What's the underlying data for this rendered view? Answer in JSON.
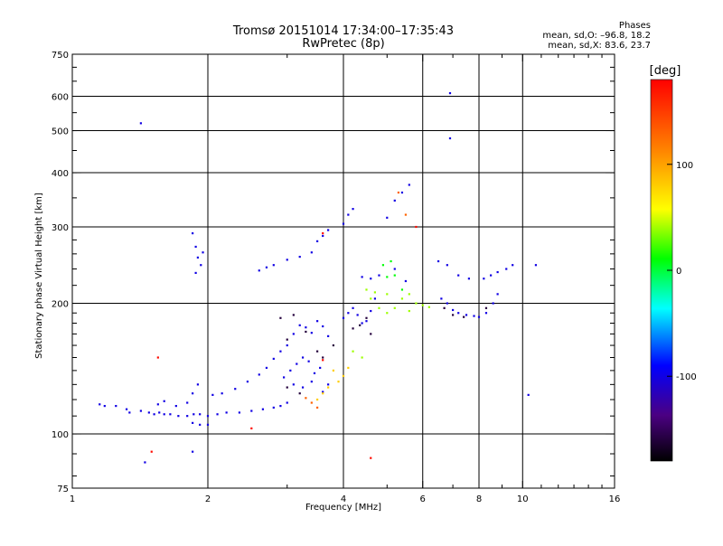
{
  "header": {
    "title_line1": "Tromsø 20151014 17:34:00–17:35:43",
    "title_line2": "RwPretec (8p)",
    "stats_heading": "Phases",
    "stats_o": "mean, sd,O: –96.8, 18.2",
    "stats_x": "mean, sd,X:  83.6, 23.7"
  },
  "chart_data": {
    "type": "scatter",
    "title": "Tromsø 20151014 17:34:00–17:35:43",
    "subtitle": "RwPretec (8p)",
    "xlabel": "Frequency [MHz]",
    "ylabel": "Stationary phase Virtual Height [km]",
    "x_scale": "log",
    "y_scale": "log",
    "xlim": [
      1,
      16
    ],
    "ylim": [
      75,
      750
    ],
    "x_major_ticks": [
      1,
      2,
      4,
      6,
      8,
      10,
      16
    ],
    "y_major_ticks": [
      75,
      100,
      200,
      300,
      400,
      500,
      600,
      750
    ],
    "y_gridlines": [
      100,
      200,
      300,
      400,
      500,
      600
    ],
    "x_gridlines": [
      2,
      4,
      6,
      8,
      10
    ],
    "grid": true,
    "colorbar": {
      "label": "[deg]",
      "range": [
        -180,
        180
      ],
      "ticks": [
        100,
        0,
        -100
      ]
    },
    "series": [
      {
        "phase": -100,
        "points": [
          [
            1.15,
            117
          ],
          [
            1.18,
            116
          ],
          [
            1.25,
            116
          ],
          [
            1.32,
            114
          ],
          [
            1.34,
            112
          ],
          [
            1.42,
            113
          ],
          [
            1.48,
            112
          ],
          [
            1.52,
            111
          ],
          [
            1.56,
            112
          ],
          [
            1.6,
            111
          ],
          [
            1.65,
            111
          ],
          [
            1.72,
            110
          ],
          [
            1.8,
            110
          ],
          [
            1.86,
            111
          ],
          [
            1.92,
            111
          ],
          [
            2.0,
            110
          ],
          [
            2.1,
            111
          ],
          [
            2.2,
            112
          ],
          [
            2.35,
            112
          ],
          [
            2.5,
            113
          ],
          [
            2.65,
            114
          ],
          [
            2.8,
            115
          ],
          [
            2.9,
            116
          ],
          [
            3.0,
            118
          ],
          [
            1.85,
            106
          ],
          [
            1.92,
            105
          ],
          [
            2.0,
            105
          ],
          [
            1.55,
            117
          ],
          [
            1.6,
            119
          ],
          [
            1.7,
            116
          ],
          [
            1.8,
            118
          ],
          [
            1.85,
            124
          ],
          [
            1.9,
            130
          ],
          [
            2.05,
            123
          ],
          [
            2.15,
            124
          ],
          [
            2.3,
            127
          ],
          [
            2.45,
            132
          ],
          [
            2.6,
            137
          ],
          [
            2.7,
            142
          ],
          [
            2.8,
            149
          ],
          [
            2.9,
            155
          ],
          [
            3.0,
            160
          ],
          [
            3.1,
            170
          ],
          [
            3.2,
            178
          ],
          [
            3.3,
            176
          ],
          [
            3.4,
            171
          ],
          [
            3.5,
            182
          ],
          [
            3.6,
            177
          ],
          [
            3.7,
            168
          ],
          [
            2.95,
            135
          ],
          [
            3.05,
            140
          ],
          [
            3.15,
            145
          ],
          [
            3.25,
            150
          ],
          [
            3.35,
            147
          ],
          [
            3.45,
            138
          ],
          [
            3.55,
            142
          ],
          [
            3.1,
            130
          ],
          [
            3.25,
            128
          ],
          [
            3.4,
            132
          ],
          [
            3.6,
            125
          ],
          [
            3.7,
            130
          ],
          [
            1.85,
            290
          ],
          [
            1.88,
            270
          ],
          [
            1.9,
            255
          ],
          [
            1.93,
            245
          ],
          [
            1.88,
            235
          ],
          [
            1.95,
            262
          ],
          [
            2.6,
            238
          ],
          [
            2.7,
            242
          ],
          [
            2.8,
            245
          ],
          [
            3.0,
            252
          ],
          [
            3.2,
            256
          ],
          [
            3.4,
            262
          ],
          [
            3.5,
            278
          ],
          [
            3.6,
            286
          ],
          [
            3.7,
            295
          ],
          [
            4.0,
            305
          ],
          [
            4.1,
            320
          ],
          [
            4.2,
            330
          ],
          [
            4.0,
            185
          ],
          [
            4.1,
            190
          ],
          [
            4.2,
            195
          ],
          [
            4.3,
            188
          ],
          [
            4.4,
            180
          ],
          [
            4.5,
            182
          ],
          [
            4.6,
            192
          ],
          [
            4.7,
            205
          ],
          [
            4.4,
            230
          ],
          [
            4.6,
            228
          ],
          [
            4.8,
            232
          ],
          [
            5.2,
            240
          ],
          [
            5.5,
            225
          ],
          [
            5.0,
            315
          ],
          [
            5.2,
            345
          ],
          [
            5.4,
            360
          ],
          [
            5.6,
            375
          ],
          [
            6.6,
            205
          ],
          [
            6.8,
            200
          ],
          [
            7.0,
            193
          ],
          [
            7.2,
            190
          ],
          [
            7.5,
            188
          ],
          [
            7.8,
            187
          ],
          [
            8.0,
            186
          ],
          [
            8.3,
            190
          ],
          [
            8.6,
            200
          ],
          [
            8.8,
            210
          ],
          [
            8.2,
            228
          ],
          [
            8.5,
            232
          ],
          [
            8.8,
            236
          ],
          [
            9.2,
            240
          ],
          [
            9.5,
            245
          ],
          [
            10.7,
            245
          ],
          [
            6.5,
            250
          ],
          [
            6.8,
            245
          ],
          [
            7.2,
            232
          ],
          [
            7.6,
            228
          ],
          [
            1.85,
            91
          ],
          [
            1.45,
            86
          ],
          [
            1.42,
            520
          ],
          [
            6.9,
            610
          ],
          [
            6.9,
            480
          ],
          [
            10.3,
            123
          ]
        ]
      },
      {
        "phase": -160,
        "points": [
          [
            2.9,
            185
          ],
          [
            3.0,
            165
          ],
          [
            3.1,
            188
          ],
          [
            3.3,
            172
          ],
          [
            3.5,
            155
          ],
          [
            3.6,
            150
          ],
          [
            3.8,
            160
          ],
          [
            4.2,
            175
          ],
          [
            4.35,
            178
          ],
          [
            4.5,
            185
          ],
          [
            4.6,
            170
          ],
          [
            6.7,
            195
          ],
          [
            7.0,
            188
          ],
          [
            7.4,
            186
          ],
          [
            8.3,
            195
          ],
          [
            3.0,
            128
          ],
          [
            3.2,
            124
          ]
        ]
      },
      {
        "phase": 10,
        "points": [
          [
            5.0,
            230
          ],
          [
            5.2,
            232
          ],
          [
            5.4,
            215
          ],
          [
            4.9,
            245
          ],
          [
            5.1,
            250
          ]
        ]
      },
      {
        "phase": 40,
        "points": [
          [
            4.6,
            205
          ],
          [
            4.8,
            195
          ],
          [
            5.0,
            190
          ],
          [
            5.2,
            195
          ],
          [
            5.4,
            205
          ],
          [
            5.6,
            210
          ],
          [
            5.8,
            200
          ],
          [
            4.5,
            215
          ],
          [
            4.7,
            212
          ],
          [
            5.0,
            210
          ],
          [
            5.6,
            192
          ],
          [
            6.0,
            198
          ],
          [
            6.2,
            196
          ],
          [
            4.2,
            155
          ],
          [
            4.4,
            150
          ]
        ]
      },
      {
        "phase": 80,
        "points": [
          [
            3.6,
            124
          ],
          [
            3.7,
            128
          ],
          [
            3.9,
            132
          ],
          [
            4.0,
            136
          ],
          [
            3.5,
            120
          ],
          [
            3.8,
            140
          ],
          [
            4.1,
            142
          ]
        ]
      },
      {
        "phase": 130,
        "points": [
          [
            3.4,
            118
          ],
          [
            3.5,
            115
          ],
          [
            3.3,
            121
          ],
          [
            5.3,
            360
          ],
          [
            5.5,
            320
          ]
        ]
      },
      {
        "phase": 175,
        "points": [
          [
            4.6,
            88
          ],
          [
            1.55,
            150
          ],
          [
            3.6,
            290
          ],
          [
            5.8,
            300
          ],
          [
            3.6,
            148
          ],
          [
            2.5,
            103
          ],
          [
            1.5,
            91
          ]
        ]
      }
    ]
  }
}
